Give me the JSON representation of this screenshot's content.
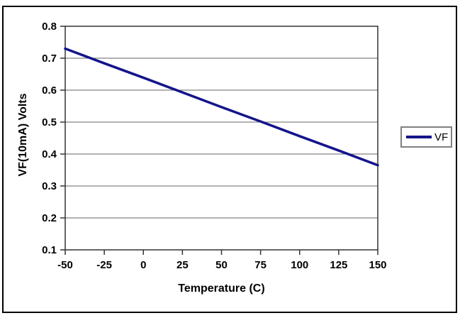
{
  "chart_data": {
    "type": "line",
    "title": "",
    "xlabel": "Temperature (C)",
    "ylabel": "VF(10mA) Volts",
    "x": [
      -50,
      -25,
      0,
      25,
      50,
      75,
      100,
      125,
      150
    ],
    "series": [
      {
        "name": "VF",
        "values": [
          0.73,
          0.684,
          0.639,
          0.593,
          0.547,
          0.502,
          0.456,
          0.411,
          0.365
        ],
        "color": "#14148C"
      }
    ],
    "xlim": [
      -50,
      150
    ],
    "ylim": [
      0.1,
      0.8
    ],
    "x_ticks": [
      -50,
      -25,
      0,
      25,
      50,
      75,
      100,
      125,
      150
    ],
    "y_ticks": [
      0.1,
      0.2,
      0.3,
      0.4,
      0.5,
      0.6,
      0.7,
      0.8
    ],
    "grid": "horizontal",
    "legend_position": "right",
    "legend_entries": [
      "VF"
    ]
  },
  "colors": {
    "series_line": "#14148C",
    "gridline": "#666666",
    "axis": "#333333",
    "legend_border": "#808080",
    "outer_border": "#000000",
    "background": "#FFFFFF"
  }
}
